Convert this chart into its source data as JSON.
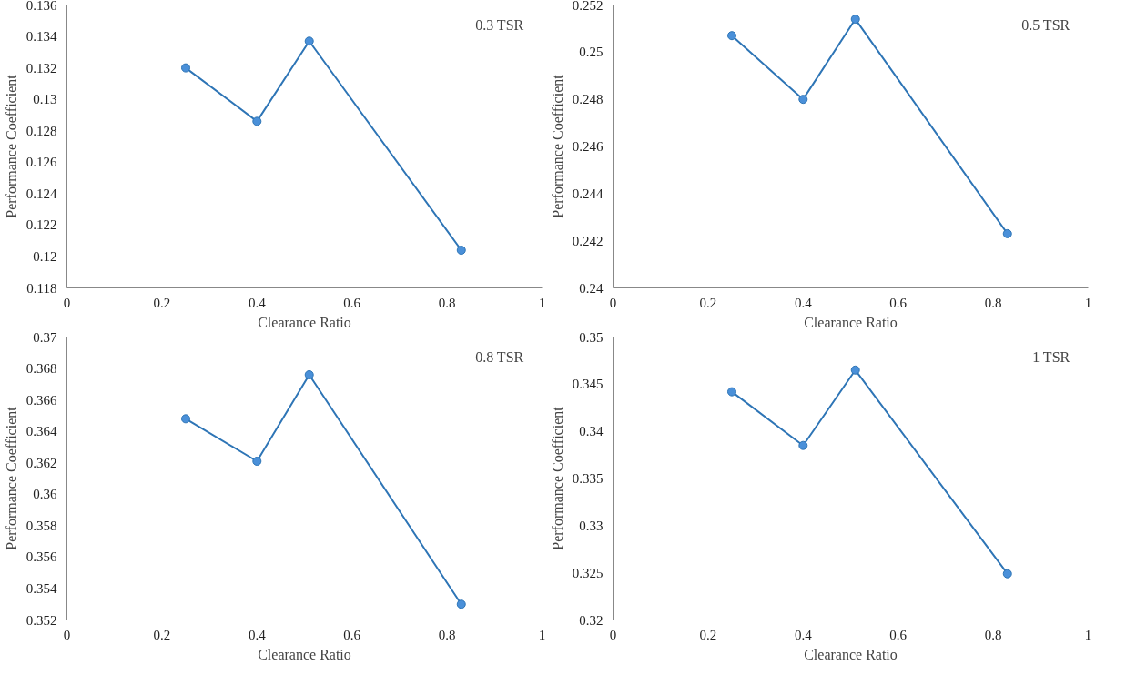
{
  "chart_data": [
    {
      "type": "line",
      "annotations": [
        "0.3 TSR"
      ],
      "xlabel": "Clearance Ratio",
      "ylabel": "Performance Coefficient",
      "x": [
        0.25,
        0.4,
        0.51,
        0.83
      ],
      "series": [
        {
          "color": "#2e75b6",
          "values": [
            0.132,
            0.1286,
            0.1337,
            0.1204
          ]
        }
      ],
      "xlim": [
        0,
        1
      ],
      "xticks": [
        0,
        0.2,
        0.4,
        0.6,
        0.8,
        1
      ],
      "ylim": [
        0.118,
        0.136
      ],
      "yticks": [
        0.118,
        0.12,
        0.122,
        0.124,
        0.126,
        0.128,
        0.13,
        0.132,
        0.134,
        0.136
      ],
      "marker": "circle",
      "grid": false
    },
    {
      "type": "line",
      "annotations": [
        "0.5 TSR"
      ],
      "xlabel": "Clearance Ratio",
      "ylabel": "Performance Coefficient",
      "x": [
        0.25,
        0.4,
        0.51,
        0.83
      ],
      "series": [
        {
          "color": "#2e75b6",
          "values": [
            0.2507,
            0.248,
            0.2514,
            0.2423
          ]
        }
      ],
      "xlim": [
        0,
        1
      ],
      "xticks": [
        0,
        0.2,
        0.4,
        0.6,
        0.8,
        1
      ],
      "ylim": [
        0.24,
        0.252
      ],
      "yticks": [
        0.24,
        0.242,
        0.244,
        0.246,
        0.248,
        0.25,
        0.252
      ],
      "marker": "circle",
      "grid": false
    },
    {
      "type": "line",
      "annotations": [
        "0.8 TSR"
      ],
      "xlabel": "Clearance Ratio",
      "ylabel": "Performance Coefficient",
      "x": [
        0.25,
        0.4,
        0.51,
        0.83
      ],
      "series": [
        {
          "color": "#2e75b6",
          "values": [
            0.3648,
            0.3621,
            0.3676,
            0.353
          ]
        }
      ],
      "xlim": [
        0,
        1
      ],
      "xticks": [
        0,
        0.2,
        0.4,
        0.6,
        0.8,
        1
      ],
      "ylim": [
        0.352,
        0.37
      ],
      "yticks": [
        0.352,
        0.354,
        0.356,
        0.358,
        0.36,
        0.362,
        0.364,
        0.366,
        0.368,
        0.37
      ],
      "marker": "circle",
      "grid": false
    },
    {
      "type": "line",
      "annotations": [
        "1 TSR"
      ],
      "xlabel": "Clearance Ratio",
      "ylabel": "Performance Coefficient",
      "x": [
        0.25,
        0.4,
        0.51,
        0.83
      ],
      "series": [
        {
          "color": "#2e75b6",
          "values": [
            0.3442,
            0.3385,
            0.3465,
            0.3249
          ]
        }
      ],
      "xlim": [
        0,
        1
      ],
      "xticks": [
        0,
        0.2,
        0.4,
        0.6,
        0.8,
        1
      ],
      "ylim": [
        0.32,
        0.35
      ],
      "yticks": [
        0.32,
        0.325,
        0.33,
        0.335,
        0.34,
        0.345,
        0.35
      ],
      "marker": "circle",
      "grid": false
    }
  ]
}
